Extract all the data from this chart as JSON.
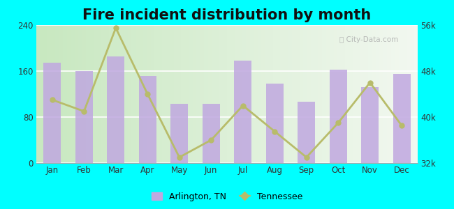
{
  "title": "Fire incident distribution by month",
  "months": [
    "Jan",
    "Feb",
    "Mar",
    "Apr",
    "May",
    "Jun",
    "Jul",
    "Aug",
    "Sep",
    "Oct",
    "Nov",
    "Dec"
  ],
  "arlington_values": [
    175,
    160,
    185,
    152,
    103,
    103,
    178,
    138,
    107,
    162,
    132,
    155
  ],
  "tennessee_values": [
    43000,
    41000,
    55500,
    44000,
    33000,
    36000,
    42000,
    37500,
    33000,
    39000,
    46000,
    38500
  ],
  "bar_color": "#c0a8e0",
  "line_color": "#b8bc6a",
  "line_marker": "o",
  "left_ylim": [
    0,
    240
  ],
  "left_yticks": [
    0,
    80,
    160,
    240
  ],
  "right_ylim": [
    32000,
    56000
  ],
  "right_yticks": [
    32000,
    40000,
    48000,
    56000
  ],
  "right_yticklabels": [
    "32k",
    "40k",
    "48k",
    "56k"
  ],
  "bg_left_color": "#d8f0d0",
  "bg_right_color": "#f0f8f0",
  "outer_background": "#00ffff",
  "title_fontsize": 15,
  "watermark": "ⓘ City-Data.com"
}
